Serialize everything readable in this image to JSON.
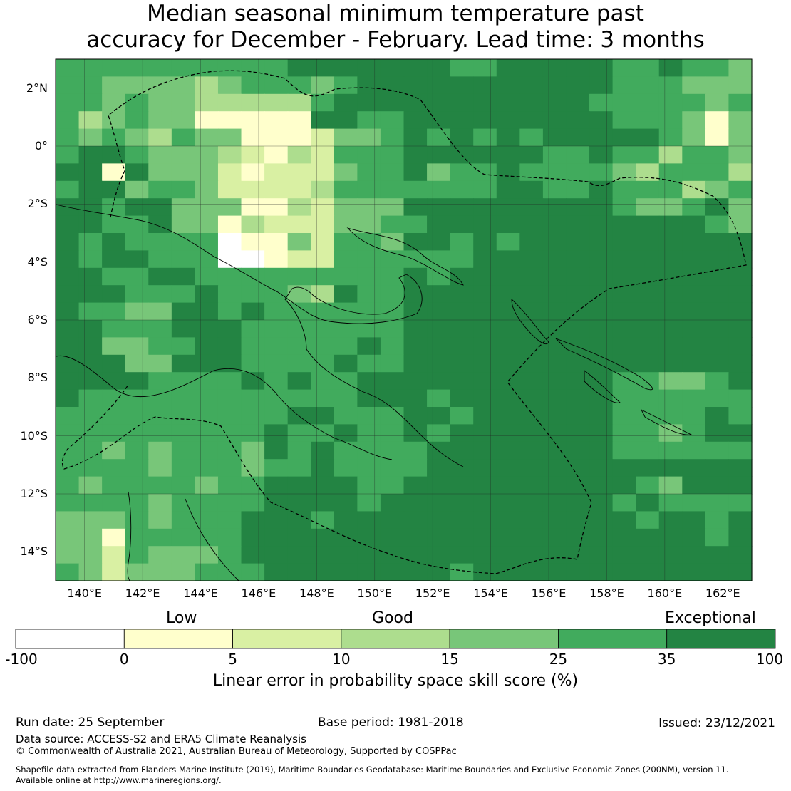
{
  "title": {
    "line1": "Median seasonal minimum temperature past",
    "line2": "accuracy for December - February. Lead time: 3 months"
  },
  "axes": {
    "lon_labels": [
      "140°E",
      "142°E",
      "144°E",
      "146°E",
      "148°E",
      "150°E",
      "152°E",
      "154°E",
      "156°E",
      "158°E",
      "160°E",
      "162°E"
    ],
    "lat_labels": [
      "2°N",
      "0°",
      "2°S",
      "4°S",
      "6°S",
      "8°S",
      "10°S",
      "12°S",
      "14°S"
    ]
  },
  "legend": {
    "categories": [
      "Low",
      "Good",
      "Exceptional"
    ],
    "ticks": [
      "-100",
      "0",
      "5",
      "10",
      "15",
      "25",
      "35",
      "100"
    ],
    "colors": [
      "#ffffff",
      "#ffffcc",
      "#d9f0a3",
      "#addd8e",
      "#78c679",
      "#41ab5d",
      "#238443"
    ],
    "label": "Linear error in probability space skill score (%)"
  },
  "footer": {
    "run_date": "Run date: 25 September",
    "base_period": "Base period: 1981-2018",
    "issued": "Issued: 23/12/2021",
    "data_source": "Data source: ACCESS-S2 and ERA5 Climate Reanalysis",
    "copyright": "© Commonwealth of Australia 2021, Australian Bureau of Meteorology, Supported by COSPPac",
    "shapefile1": "Shapefile data extracted from Flanders Marine Institute (2019), Maritime Boundaries Geodatabase: Maritime Boundaries and Exclusive Economic Zones (200NM), version 11.",
    "shapefile2": "Available online at http://www.marineregions.org/."
  },
  "map_data": {
    "lon_range": [
      139,
      163
    ],
    "lat_range": [
      -15,
      3
    ],
    "cell_size_deg": 0.83,
    "class_scale": "0 = <0, 1 = 0-5, 2 = 5-10, 3 = 10-15, 4 = 15-25, 5 = 25-35, 6 = 35-100",
    "grid_rows_north_to_south": [
      "555555555566666665566666556554",
      "554444345554566666666666555444",
      "554544333335666666666665555545",
      "534544111116655666666666555414",
      "545435441112445656565666665414",
      "566544432132555666666556553554",
      "661644421222455645565555435553",
      "566455422223555555566556555345",
      "665664441132444666666666544564",
      "665564413222445566666666666654",
      "656555501142554665656666666666",
      "656655500122555555666666666666",
      "665566555555555656666666666666",
      "666555655543655666666666666666",
      "655446656555555666666666666666",
      "665556665555555666666666666666",
      "664455665555565666666666666666",
      "666446665555655666666666666666",
      "666655556565566666666666554456",
      "655555555555566656666666555555",
      "555555555566555665666666555565",
      "555555555655655656666666554566",
      "554545554656555566666666555555",
      "555545554556555566666666666666",
      "545555455666655666666666654666",
      "555545555666656666666666565555",
      "444545556665666666666666656656",
      "441555556666666666666666666656",
      "442544456666666666666666666666",
      "542444555666666665666666666666"
    ]
  }
}
